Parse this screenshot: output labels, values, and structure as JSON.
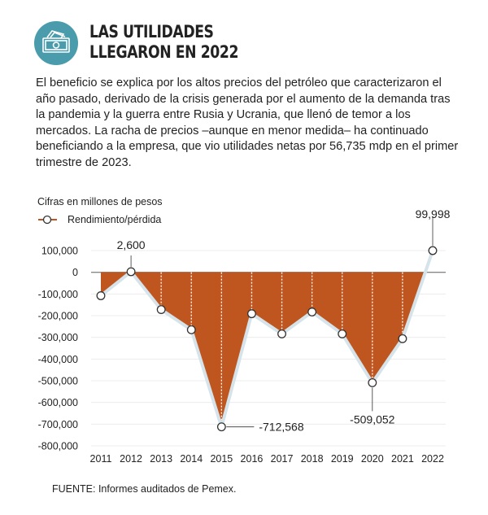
{
  "header": {
    "title_line1": "LAS UTILIDADES",
    "title_line2": "LLEGARON EN 2022",
    "icon": "money-bills-icon",
    "icon_color": "#4a9bab"
  },
  "lede": "El beneficio se explica por los altos precios del petróleo que caracterizaron el año pasado, derivado de la crisis generada por el aumento de la demanda tras la pandemia y la guerra entre Rusia y Ucrania, que llenó de temor a los mercados. La racha de precios –aunque en menor medida– ha continuado beneficiando a la empresa, que vio utilidades netas por 56,735 mdp en el primer trimestre de 2023.",
  "chart_data": {
    "type": "area",
    "subtitle": "Cifras en millones de pesos",
    "legend": "top-left",
    "series": [
      {
        "name": "Rendimiento/pérdida",
        "values": [
          -108000,
          2600,
          -172000,
          -265000,
          -712568,
          -191000,
          -284000,
          -183000,
          -284000,
          -509052,
          -306000,
          99998
        ]
      }
    ],
    "categories": [
      "2011",
      "2012",
      "2013",
      "2014",
      "2015",
      "2016",
      "2017",
      "2018",
      "2019",
      "2020",
      "2021",
      "2022"
    ],
    "data_labels": [
      {
        "category": "2012",
        "text": "2,600"
      },
      {
        "category": "2015",
        "text": "-712,568"
      },
      {
        "category": "2020",
        "text": "-509,052"
      },
      {
        "category": "2022",
        "text": "99,998"
      }
    ],
    "yticks": [
      100000,
      0,
      -100000,
      -200000,
      -300000,
      -400000,
      -500000,
      -600000,
      -700000,
      -800000
    ],
    "ytick_labels": [
      "100,000",
      "0",
      "-100,000",
      "-200,000",
      "-300,000",
      "-400,000",
      "-500,000",
      "-600,000",
      "-700,000",
      "-800,000"
    ],
    "ylim": [
      -800000,
      100000
    ],
    "grid": true,
    "colors": {
      "fill": "#c0561f",
      "line": "#d5e3ea",
      "marker": "#ffffff"
    }
  },
  "source": "FUENTE: Informes auditados de Pemex."
}
